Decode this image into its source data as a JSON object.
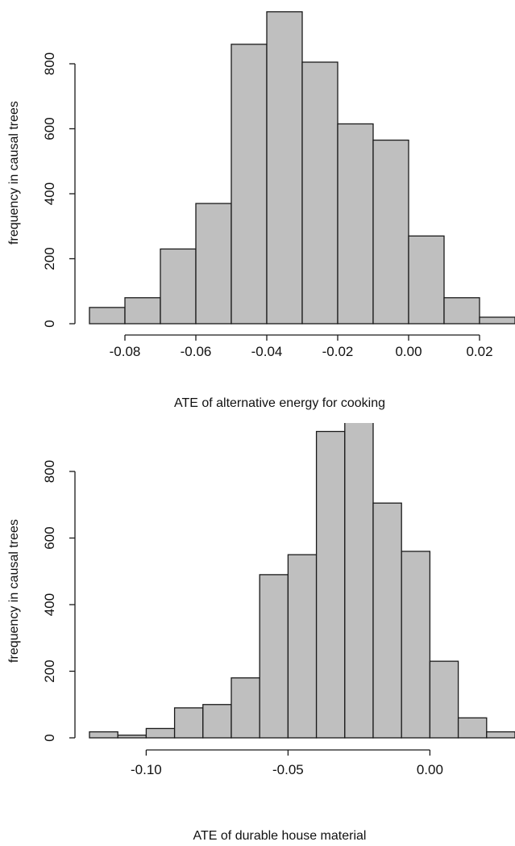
{
  "chart_data": [
    {
      "type": "bar",
      "subtype": "histogram",
      "xlabel": "ATE of alternative energy for cooking",
      "ylabel": "frequency in causal trees",
      "bin_width": 0.01,
      "bins": [
        {
          "x0": -0.09,
          "x1": -0.08,
          "count": 50
        },
        {
          "x0": -0.08,
          "x1": -0.07,
          "count": 80
        },
        {
          "x0": -0.07,
          "x1": -0.06,
          "count": 230
        },
        {
          "x0": -0.06,
          "x1": -0.05,
          "count": 370
        },
        {
          "x0": -0.05,
          "x1": -0.04,
          "count": 860
        },
        {
          "x0": -0.04,
          "x1": -0.03,
          "count": 960
        },
        {
          "x0": -0.03,
          "x1": -0.02,
          "count": 805
        },
        {
          "x0": -0.02,
          "x1": -0.01,
          "count": 615
        },
        {
          "x0": -0.01,
          "x1": 0.0,
          "count": 565
        },
        {
          "x0": 0.0,
          "x1": 0.01,
          "count": 270
        },
        {
          "x0": 0.01,
          "x1": 0.02,
          "count": 80
        },
        {
          "x0": 0.02,
          "x1": 0.03,
          "count": 20
        }
      ],
      "xlim": [
        -0.09,
        0.03
      ],
      "ylim": [
        0,
        960
      ],
      "x_axis_range": [
        -0.08,
        0.02
      ],
      "x_ticks": [
        -0.08,
        -0.06,
        -0.04,
        -0.02,
        0.0,
        0.02
      ],
      "x_tick_labels": [
        "-0.08",
        "-0.06",
        "-0.04",
        "-0.02",
        "0.00",
        "0.02"
      ],
      "y_axis_range": [
        0,
        800
      ],
      "y_ticks": [
        0,
        200,
        400,
        600,
        800
      ],
      "y_tick_labels": [
        "0",
        "200",
        "400",
        "600",
        "800"
      ],
      "grid": false,
      "colors": {
        "bar_fill": "#bfbfbf",
        "bar_stroke": "#1a1a1a",
        "text": "#111111"
      }
    },
    {
      "type": "bar",
      "subtype": "histogram",
      "xlabel": "ATE of durable house material",
      "ylabel": "frequency in causal trees",
      "bin_width": 0.01,
      "bins": [
        {
          "x0": -0.12,
          "x1": -0.11,
          "count": 18
        },
        {
          "x0": -0.11,
          "x1": -0.1,
          "count": 8
        },
        {
          "x0": -0.1,
          "x1": -0.09,
          "count": 28
        },
        {
          "x0": -0.09,
          "x1": -0.08,
          "count": 90
        },
        {
          "x0": -0.08,
          "x1": -0.07,
          "count": 100
        },
        {
          "x0": -0.07,
          "x1": -0.06,
          "count": 180
        },
        {
          "x0": -0.06,
          "x1": -0.05,
          "count": 490
        },
        {
          "x0": -0.05,
          "x1": -0.04,
          "count": 550
        },
        {
          "x0": -0.04,
          "x1": -0.03,
          "count": 920
        },
        {
          "x0": -0.03,
          "x1": -0.02,
          "count": 950
        },
        {
          "x0": -0.02,
          "x1": -0.01,
          "count": 705
        },
        {
          "x0": -0.01,
          "x1": 0.0,
          "count": 560
        },
        {
          "x0": 0.0,
          "x1": 0.01,
          "count": 230
        },
        {
          "x0": 0.01,
          "x1": 0.02,
          "count": 60
        },
        {
          "x0": 0.02,
          "x1": 0.03,
          "count": 18
        }
      ],
      "xlim": [
        -0.12,
        0.03
      ],
      "ylim": [
        0,
        960
      ],
      "x_axis_range": [
        -0.1,
        0.0
      ],
      "x_ticks": [
        -0.1,
        -0.05,
        0.0
      ],
      "x_tick_labels": [
        "-0.10",
        "-0.05",
        "0.00"
      ],
      "y_axis_range": [
        0,
        800
      ],
      "y_ticks": [
        0,
        200,
        400,
        600,
        800
      ],
      "y_tick_labels": [
        "0",
        "200",
        "400",
        "600",
        "800"
      ],
      "grid": false,
      "colors": {
        "bar_fill": "#bfbfbf",
        "bar_stroke": "#1a1a1a",
        "text": "#111111"
      }
    }
  ]
}
